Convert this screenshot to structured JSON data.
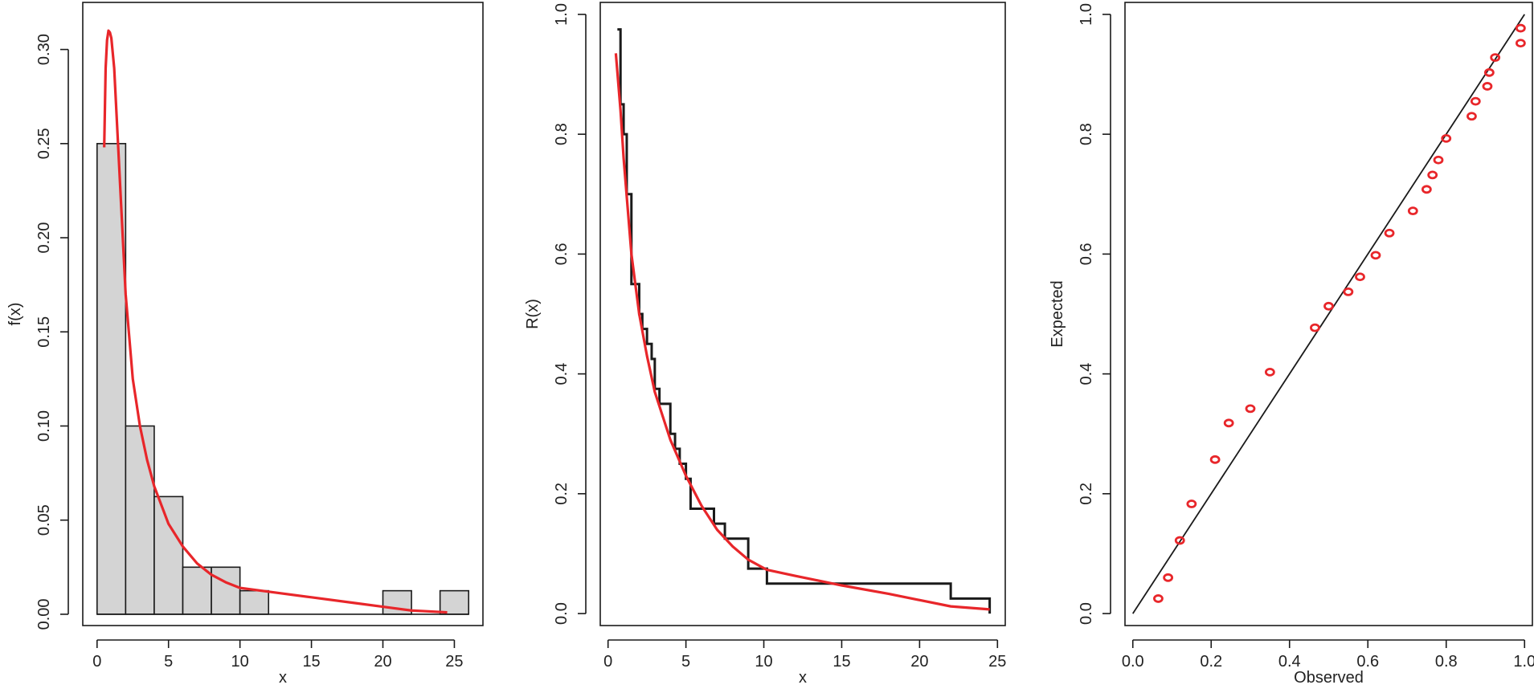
{
  "colors": {
    "fit": "#e8262a",
    "ink": "#1a1a1a",
    "bar_fill": "#d4d4d4",
    "point": "#e8262a"
  },
  "chart_data": [
    {
      "type": "bar",
      "subtype": "histogram",
      "xlabel": "x",
      "ylabel": "f(x)",
      "xlim": [
        -1,
        27
      ],
      "ylim": [
        -0.006,
        0.325
      ],
      "xticks": [
        0,
        5,
        10,
        15,
        20,
        25
      ],
      "xtick_labels": [
        "0",
        "5",
        "10",
        "15",
        "20",
        "25"
      ],
      "yticks": [
        0,
        0.05,
        0.1,
        0.15,
        0.2,
        0.25,
        0.3
      ],
      "ytick_labels": [
        "0.00",
        "0.05",
        "0.10",
        "0.15",
        "0.20",
        "0.25",
        "0.30"
      ],
      "bins": [
        {
          "from": 0,
          "to": 2,
          "density": 0.25
        },
        {
          "from": 2,
          "to": 4,
          "density": 0.1
        },
        {
          "from": 4,
          "to": 6,
          "density": 0.0625
        },
        {
          "from": 6,
          "to": 8,
          "density": 0.025
        },
        {
          "from": 8,
          "to": 10,
          "density": 0.025
        },
        {
          "from": 10,
          "to": 12,
          "density": 0.0125
        },
        {
          "from": 12,
          "to": 14,
          "density": 0
        },
        {
          "from": 14,
          "to": 16,
          "density": 0
        },
        {
          "from": 16,
          "to": 18,
          "density": 0
        },
        {
          "from": 18,
          "to": 20,
          "density": 0
        },
        {
          "from": 20,
          "to": 22,
          "density": 0.0125
        },
        {
          "from": 22,
          "to": 24,
          "density": 0
        },
        {
          "from": 24,
          "to": 26,
          "density": 0.0125
        }
      ],
      "fitted_curve": {
        "x": [
          0.5,
          0.6,
          0.7,
          0.8,
          0.9,
          1.0,
          1.2,
          1.5,
          2.0,
          2.5,
          3.0,
          3.5,
          4.0,
          5.0,
          6.0,
          7.0,
          8.0,
          9.0,
          10.0,
          12.0,
          15.0,
          18.0,
          20.0,
          22.0,
          24.5
        ],
        "y": [
          0.248,
          0.29,
          0.305,
          0.31,
          0.309,
          0.306,
          0.29,
          0.245,
          0.17,
          0.125,
          0.1,
          0.082,
          0.068,
          0.048,
          0.036,
          0.027,
          0.021,
          0.017,
          0.014,
          0.012,
          0.009,
          0.006,
          0.004,
          0.002,
          0.001
        ]
      }
    },
    {
      "type": "line",
      "subtype": "step",
      "xlabel": "x",
      "ylabel": "R(x)",
      "xlim": [
        -0.5,
        25.5
      ],
      "ylim": [
        -0.02,
        1.02
      ],
      "xticks": [
        0,
        5,
        10,
        15,
        20,
        25
      ],
      "xtick_labels": [
        "0",
        "5",
        "10",
        "15",
        "20",
        "25"
      ],
      "yticks": [
        0,
        0.2,
        0.4,
        0.6,
        0.8,
        1.0
      ],
      "ytick_labels": [
        "0.0",
        "0.2",
        "0.4",
        "0.6",
        "0.8",
        "1.0"
      ],
      "empirical_steps": {
        "x": [
          0.6,
          0.8,
          1.0,
          1.2,
          1.5,
          2.0,
          2.2,
          2.5,
          2.8,
          3.0,
          3.3,
          4.0,
          4.3,
          4.6,
          5.0,
          5.3,
          6.8,
          7.5,
          9.0,
          10.2,
          22.0,
          24.5
        ],
        "y": [
          0.975,
          0.85,
          0.8,
          0.7,
          0.55,
          0.5,
          0.475,
          0.45,
          0.425,
          0.375,
          0.35,
          0.3,
          0.275,
          0.25,
          0.225,
          0.175,
          0.15,
          0.125,
          0.075,
          0.05,
          0.025,
          0.0
        ]
      },
      "fitted_curve": {
        "x": [
          0.5,
          0.8,
          1.0,
          1.5,
          2.0,
          2.5,
          3.0,
          4.0,
          5.0,
          6.0,
          7.0,
          8.0,
          9.0,
          10.2,
          12.0,
          15.0,
          18.0,
          22.0,
          24.5
        ],
        "y": [
          0.935,
          0.84,
          0.76,
          0.6,
          0.5,
          0.43,
          0.37,
          0.29,
          0.23,
          0.18,
          0.14,
          0.112,
          0.09,
          0.073,
          0.063,
          0.047,
          0.033,
          0.012,
          0.007
        ]
      }
    },
    {
      "type": "scatter",
      "subtype": "pp-plot",
      "xlabel": "Observed",
      "ylabel": "Expected",
      "xlim": [
        -0.02,
        1.02
      ],
      "ylim": [
        -0.02,
        1.02
      ],
      "xticks": [
        0,
        0.2,
        0.4,
        0.6,
        0.8,
        1.0
      ],
      "xtick_labels": [
        "0.0",
        "0.2",
        "0.4",
        "0.6",
        "0.8",
        "1.0"
      ],
      "yticks": [
        0,
        0.2,
        0.4,
        0.6,
        0.8,
        1.0
      ],
      "ytick_labels": [
        "0.0",
        "0.2",
        "0.4",
        "0.6",
        "0.8",
        "1.0"
      ],
      "reference_line": {
        "from": [
          0,
          0
        ],
        "to": [
          1,
          1
        ]
      },
      "points": {
        "x": [
          0.065,
          0.09,
          0.12,
          0.15,
          0.21,
          0.245,
          0.3,
          0.35,
          0.465,
          0.5,
          0.55,
          0.58,
          0.62,
          0.655,
          0.715,
          0.75,
          0.765,
          0.78,
          0.8,
          0.865,
          0.875,
          0.905,
          0.91,
          0.925,
          0.99,
          0.99
        ],
        "y": [
          0.025,
          0.06,
          0.122,
          0.183,
          0.257,
          0.318,
          0.342,
          0.403,
          0.477,
          0.513,
          0.537,
          0.562,
          0.598,
          0.635,
          0.672,
          0.708,
          0.732,
          0.757,
          0.793,
          0.83,
          0.855,
          0.88,
          0.903,
          0.928,
          0.952,
          0.977
        ]
      }
    }
  ]
}
